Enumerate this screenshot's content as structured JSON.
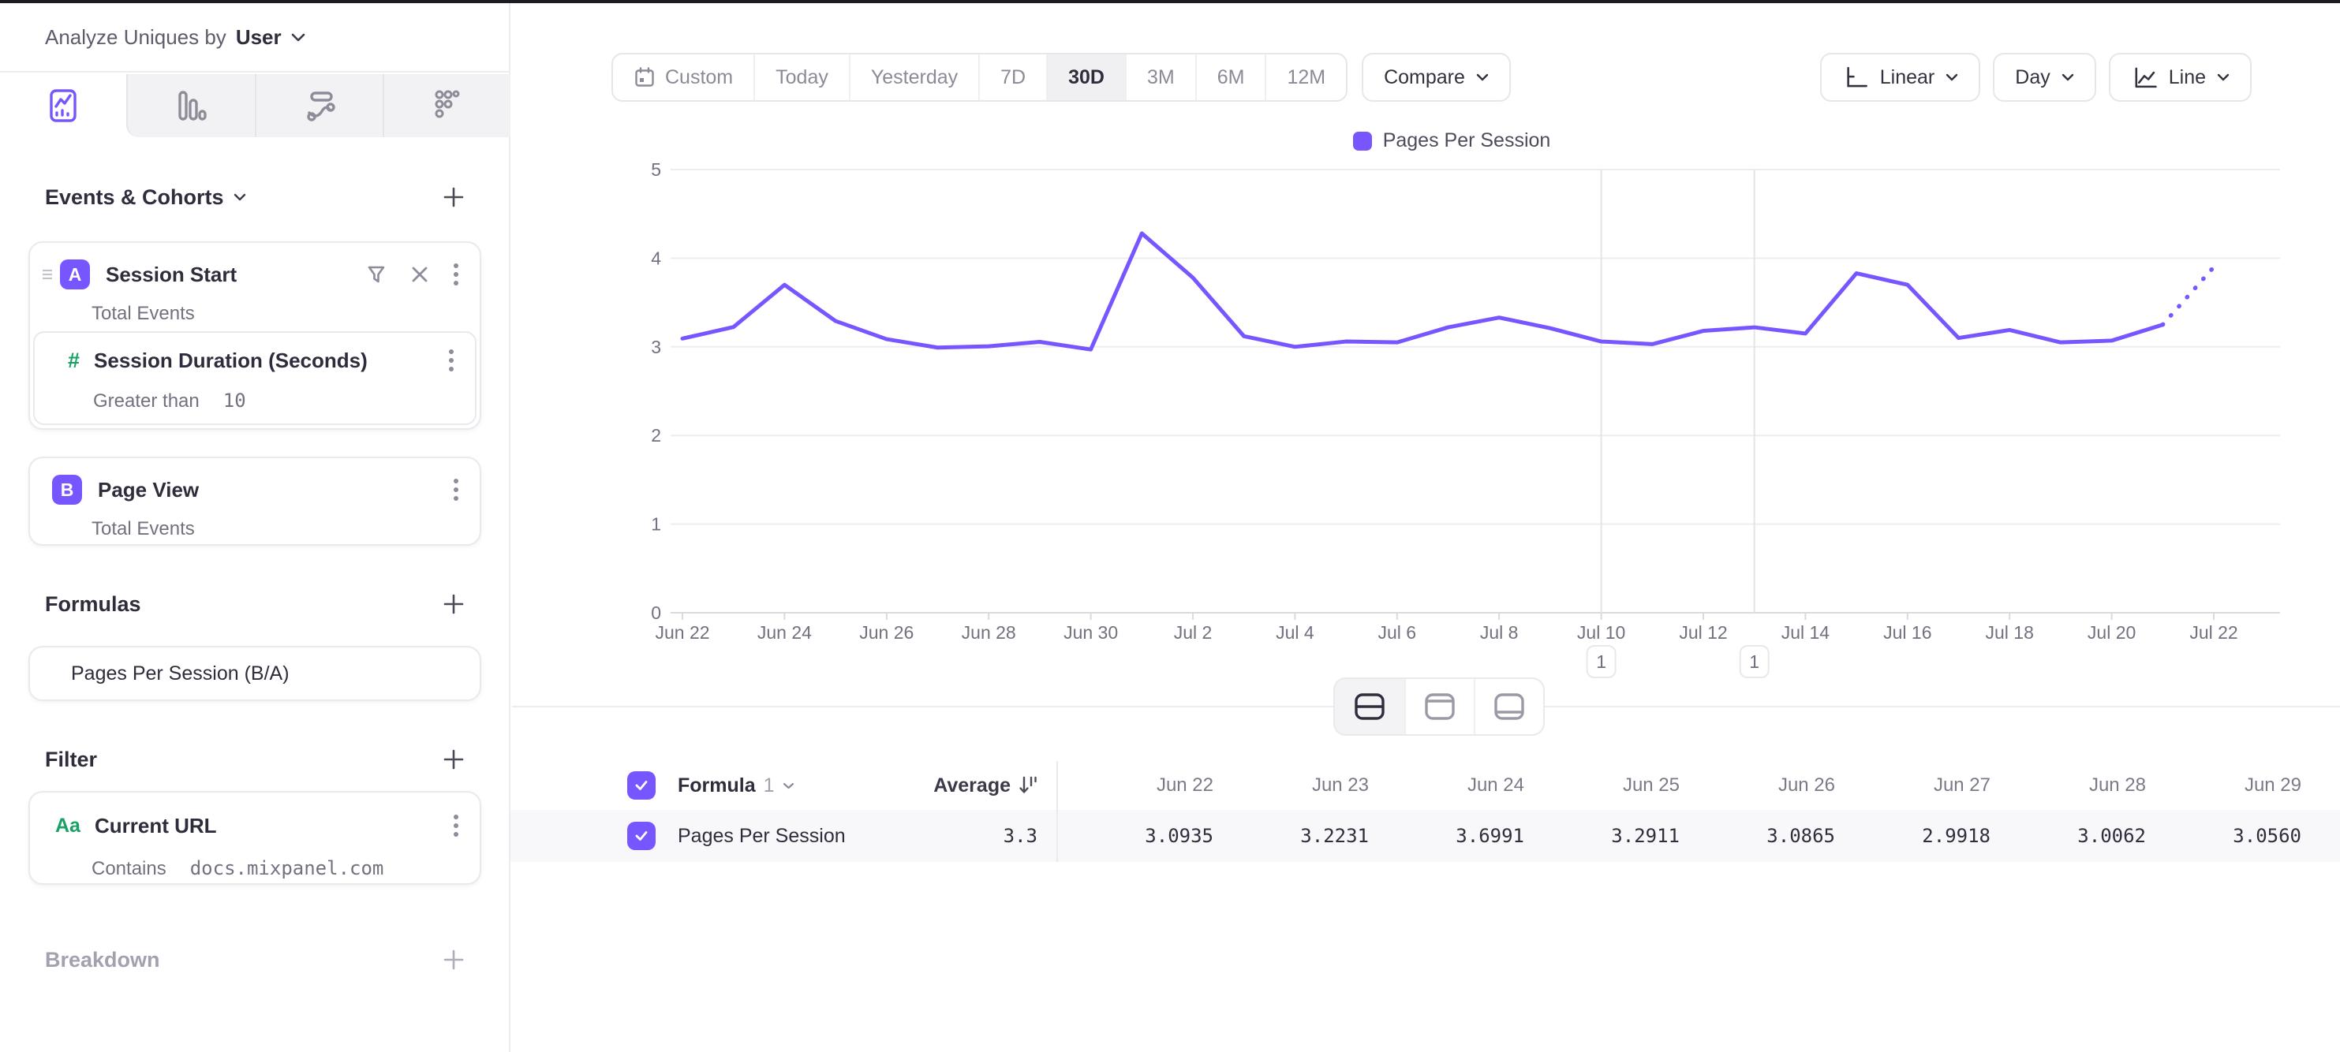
{
  "colors": {
    "accent": "#7856FF",
    "green": "#18A164",
    "gridline": "#ededf1",
    "axis": "#d9d9de",
    "vline": "#e4e4e9"
  },
  "header": {
    "analyze_label": "Analyze Uniques by",
    "analyze_value": "User"
  },
  "sidebar": {
    "tabs": [
      {
        "icon": "insights-chart-icon",
        "active": true
      },
      {
        "icon": "bar-chart-icon",
        "active": false
      },
      {
        "icon": "flows-icon",
        "active": false
      },
      {
        "icon": "retention-icon",
        "active": false
      }
    ],
    "events_heading": "Events & Cohorts",
    "events": [
      {
        "badge": "A",
        "title": "Session Start",
        "subtitle": "Total Events",
        "property": {
          "icon": "#",
          "title": "Session Duration (Seconds)",
          "operator": "Greater than",
          "value": "10"
        }
      },
      {
        "badge": "B",
        "title": "Page View",
        "subtitle": "Total Events"
      }
    ],
    "formulas_heading": "Formulas",
    "formula_name": "Pages Per Session (B/A)",
    "filter_heading": "Filter",
    "filter": {
      "icon": "Aa",
      "title": "Current URL",
      "operator": "Contains",
      "value": "docs.mixpanel.com"
    },
    "breakdown_heading": "Breakdown"
  },
  "toolbar": {
    "date_ranges": [
      "Custom",
      "Today",
      "Yesterday",
      "7D",
      "30D",
      "3M",
      "6M",
      "12M"
    ],
    "active_range": "30D",
    "compare_label": "Compare",
    "scale_label": "Linear",
    "interval_label": "Day",
    "chart_type_label": "Line"
  },
  "chart_data": {
    "type": "line",
    "series": [
      {
        "name": "Pages Per Session",
        "color": "#7856FF"
      }
    ],
    "x": [
      "Jun 22",
      "Jun 23",
      "Jun 24",
      "Jun 25",
      "Jun 26",
      "Jun 27",
      "Jun 28",
      "Jun 29",
      "Jun 30",
      "Jul 1",
      "Jul 2",
      "Jul 3",
      "Jul 4",
      "Jul 5",
      "Jul 6",
      "Jul 7",
      "Jul 8",
      "Jul 9",
      "Jul 10",
      "Jul 11",
      "Jul 12",
      "Jul 13",
      "Jul 14",
      "Jul 15",
      "Jul 16",
      "Jul 17",
      "Jul 18",
      "Jul 19",
      "Jul 20",
      "Jul 21",
      "Jul 22"
    ],
    "values": [
      3.0935,
      3.2231,
      3.6991,
      3.2911,
      3.0865,
      2.9918,
      3.0062,
      3.056,
      2.97,
      4.28,
      3.78,
      3.12,
      3.0,
      3.06,
      3.05,
      3.22,
      3.33,
      3.21,
      3.06,
      3.03,
      3.18,
      3.22,
      3.15,
      3.83,
      3.7,
      3.1,
      3.19,
      3.05,
      3.07,
      3.25,
      3.9
    ],
    "dotted_from_index": 29,
    "ylim": [
      0,
      5
    ],
    "yticks": [
      0,
      1,
      2,
      3,
      4,
      5
    ],
    "x_label_step": 2,
    "grid": true,
    "legend_position": "top-center",
    "annotations": [
      {
        "index": 18,
        "date": "Jul 10",
        "label": "1"
      },
      {
        "index": 21,
        "date": "Jul 13",
        "label": "1"
      }
    ]
  },
  "table": {
    "name_header_main": "Formula",
    "name_header_num": "1",
    "avg_header": "Average",
    "columns": [
      "Jun 22",
      "Jun 23",
      "Jun 24",
      "Jun 25",
      "Jun 26",
      "Jun 27",
      "Jun 28",
      "Jun 29"
    ],
    "rows": [
      {
        "name": "Pages Per Session",
        "average": "3.3",
        "values": [
          "3.0935",
          "3.2231",
          "3.6991",
          "3.2911",
          "3.0865",
          "2.9918",
          "3.0062",
          "3.0560"
        ]
      }
    ]
  }
}
